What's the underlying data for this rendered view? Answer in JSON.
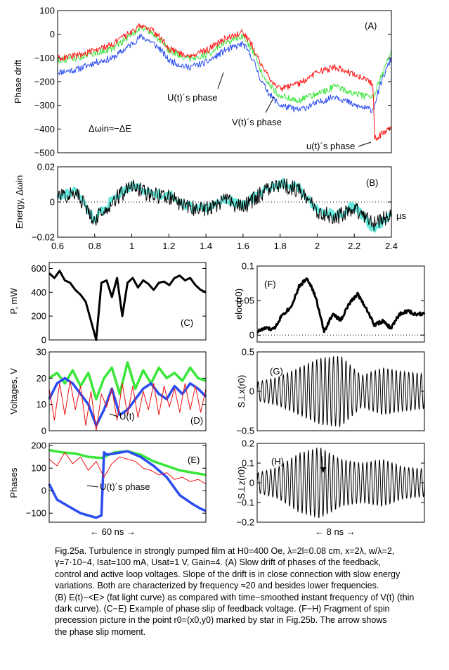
{
  "colors": {
    "red": "#ff1a1a",
    "green": "#39e639",
    "blue": "#2a4cf0",
    "cyan": "#66e8dc",
    "black": "#000000",
    "thin_red": "#ee1111"
  },
  "chart_data": [
    {
      "id": "A",
      "type": "line",
      "panel_label": "(A)",
      "ylabel": "Phase drift",
      "xlim": [
        0.6,
        2.4
      ],
      "ylim": [
        -500,
        100
      ],
      "yticks": [
        100,
        0,
        -100,
        -200,
        -300,
        -400,
        -500
      ],
      "formula": "Δωin≈−ΔE",
      "annotations": [
        "U(t)´s phase",
        "V(t)´s phase",
        "u(t)´s phase"
      ],
      "series": [
        {
          "name": "U(t)´s phase",
          "color": "blue",
          "x": [
            0.6,
            0.7,
            0.8,
            0.9,
            1.0,
            1.05,
            1.1,
            1.15,
            1.2,
            1.3,
            1.4,
            1.5,
            1.6,
            1.65,
            1.7,
            1.75,
            1.8,
            1.85,
            1.9,
            2.0,
            2.1,
            2.2,
            2.3,
            2.35,
            2.4
          ],
          "y": [
            -160,
            -150,
            -120,
            -100,
            -40,
            -10,
            -30,
            -60,
            -110,
            -140,
            -120,
            -70,
            -40,
            -100,
            -200,
            -260,
            -300,
            -310,
            -320,
            -290,
            -260,
            -300,
            -320,
            -190,
            -100
          ]
        },
        {
          "name": "V(t)´s phase",
          "color": "green",
          "x": [
            0.6,
            0.7,
            0.8,
            0.9,
            1.0,
            1.05,
            1.1,
            1.15,
            1.2,
            1.3,
            1.4,
            1.5,
            1.6,
            1.65,
            1.7,
            1.75,
            1.8,
            1.85,
            1.9,
            2.0,
            2.1,
            2.2,
            2.3,
            2.35,
            2.4
          ],
          "y": [
            -110,
            -100,
            -80,
            -60,
            0,
            30,
            10,
            -20,
            -70,
            -100,
            -90,
            -40,
            -10,
            -70,
            -160,
            -220,
            -260,
            -270,
            -280,
            -250,
            -220,
            -250,
            -270,
            -170,
            -70
          ]
        },
        {
          "name": "u(t)´s phase",
          "color": "red",
          "x": [
            0.6,
            0.7,
            0.8,
            0.9,
            1.0,
            1.05,
            1.1,
            1.15,
            1.2,
            1.3,
            1.4,
            1.5,
            1.6,
            1.65,
            1.7,
            1.75,
            1.8,
            1.85,
            1.9,
            2.0,
            2.1,
            2.2,
            2.3,
            2.31,
            2.35,
            2.4
          ],
          "y": [
            -100,
            -90,
            -70,
            -40,
            10,
            40,
            20,
            -10,
            -60,
            -90,
            -70,
            -20,
            10,
            -50,
            -130,
            -190,
            -230,
            -220,
            -210,
            -160,
            -140,
            -170,
            -210,
            -440,
            -420,
            -400
          ]
        }
      ]
    },
    {
      "id": "B",
      "type": "line",
      "panel_label": "(B)",
      "ylabel": "Energy, Δωin",
      "xlabel": "µs",
      "xlim": [
        0.6,
        2.4
      ],
      "ylim": [
        -0.02,
        0.02
      ],
      "xticks": [
        0.6,
        0.8,
        1,
        1.2,
        1.4,
        1.6,
        1.8,
        2,
        2.2,
        2.4
      ],
      "yticks": [
        0.02,
        0,
        -0.02
      ],
      "series": [
        {
          "name": "E(t)−<E>",
          "color": "cyan",
          "x": [
            0.6,
            0.7,
            0.8,
            0.9,
            1.0,
            1.1,
            1.2,
            1.3,
            1.4,
            1.5,
            1.6,
            1.7,
            1.8,
            1.9,
            2.0,
            2.1,
            2.2,
            2.3,
            2.4
          ],
          "y": [
            0.004,
            0.006,
            -0.01,
            0.002,
            0.01,
            0.005,
            0.004,
            -0.002,
            -0.004,
            0.002,
            -0.002,
            0.006,
            0.011,
            0.008,
            -0.004,
            -0.008,
            -0.002,
            -0.015,
            -0.008
          ]
        },
        {
          "name": "frequency of V(t)",
          "color": "black",
          "x": [
            0.6,
            0.7,
            0.8,
            0.9,
            1.0,
            1.1,
            1.2,
            1.3,
            1.4,
            1.5,
            1.6,
            1.7,
            1.8,
            1.9,
            2.0,
            2.1,
            2.2,
            2.3,
            2.4
          ],
          "y": [
            0.003,
            0.005,
            -0.01,
            0.001,
            0.009,
            0.004,
            0.003,
            -0.003,
            -0.004,
            0.001,
            -0.003,
            0.005,
            0.01,
            0.007,
            -0.005,
            -0.009,
            -0.003,
            -0.013,
            -0.007
          ]
        }
      ]
    },
    {
      "id": "C",
      "type": "line",
      "panel_label": "(C)",
      "ylabel": "P, mW",
      "ylim": [
        0,
        650
      ],
      "yticks": [
        600,
        400,
        200,
        0
      ],
      "xlim": [
        0,
        60
      ],
      "series": [
        {
          "name": "P",
          "color": "black",
          "x": [
            0,
            2,
            4,
            6,
            8,
            10,
            12,
            14,
            16,
            18,
            20,
            22,
            24,
            26,
            28,
            30,
            32,
            34,
            36,
            38,
            40,
            42,
            44,
            46,
            48,
            50,
            52,
            54,
            56,
            58,
            60
          ],
          "y": [
            560,
            520,
            580,
            500,
            480,
            420,
            380,
            320,
            160,
            0,
            480,
            500,
            360,
            520,
            200,
            480,
            520,
            440,
            500,
            470,
            420,
            480,
            490,
            460,
            520,
            540,
            500,
            520,
            460,
            420,
            400
          ]
        }
      ]
    },
    {
      "id": "D",
      "type": "line",
      "panel_label": "(D)",
      "ylabel": "Voltages, V",
      "ylim": [
        0,
        30
      ],
      "yticks": [
        30,
        20,
        10,
        0
      ],
      "xlim": [
        0,
        60
      ],
      "annotations": [
        "U(t)"
      ],
      "series": [
        {
          "name": "green",
          "color": "green",
          "x": [
            0,
            3,
            6,
            9,
            12,
            15,
            18,
            21,
            24,
            27,
            30,
            33,
            36,
            39,
            42,
            45,
            48,
            51,
            54,
            57,
            60
          ],
          "y": [
            20,
            22,
            18,
            23,
            17,
            22,
            12,
            20,
            24,
            14,
            26,
            16,
            23,
            18,
            24,
            20,
            22,
            19,
            24,
            20,
            19
          ]
        },
        {
          "name": "U(t)",
          "color": "blue",
          "x": [
            0,
            3,
            6,
            9,
            12,
            15,
            18,
            21,
            24,
            27,
            30,
            33,
            36,
            39,
            42,
            45,
            48,
            51,
            54,
            57,
            60
          ],
          "y": [
            12,
            18,
            20,
            18,
            14,
            10,
            2,
            8,
            16,
            6,
            8,
            12,
            16,
            18,
            14,
            12,
            17,
            14,
            18,
            16,
            13
          ]
        },
        {
          "name": "thin",
          "color": "thin_red",
          "x": [
            0,
            2,
            4,
            6,
            8,
            10,
            12,
            14,
            16,
            18,
            20,
            22,
            24,
            26,
            28,
            30,
            32,
            34,
            36,
            38,
            40,
            42,
            44,
            46,
            48,
            50,
            52,
            54,
            56,
            58,
            60
          ],
          "y": [
            16,
            4,
            18,
            6,
            19,
            8,
            17,
            2,
            15,
            0,
            14,
            9,
            16,
            4,
            18,
            6,
            17,
            5,
            15,
            8,
            18,
            6,
            17,
            9,
            16,
            7,
            18,
            8,
            17,
            7,
            16
          ]
        }
      ]
    },
    {
      "id": "E",
      "type": "line",
      "panel_label": "(E)",
      "ylabel": "Phases",
      "ylim": [
        -140,
        210
      ],
      "yticks": [
        200,
        100,
        0,
        -100
      ],
      "xlim": [
        0,
        60
      ],
      "annotations": [
        "U(t)´s phase"
      ],
      "series": [
        {
          "name": "green",
          "color": "green",
          "x": [
            0,
            5,
            10,
            15,
            20,
            25,
            30,
            35,
            40,
            45,
            50,
            55,
            60
          ],
          "y": [
            180,
            170,
            165,
            150,
            145,
            170,
            175,
            160,
            130,
            110,
            90,
            80,
            70
          ]
        },
        {
          "name": "U(t)´s phase",
          "color": "blue",
          "x": [
            0,
            3,
            6,
            9,
            12,
            15,
            18,
            20,
            21,
            22,
            25,
            30,
            35,
            40,
            45,
            50,
            55,
            58,
            60
          ],
          "y": [
            30,
            -40,
            -60,
            -80,
            -100,
            -110,
            -120,
            -110,
            170,
            160,
            165,
            175,
            150,
            110,
            60,
            -20,
            -60,
            -80,
            -90
          ]
        },
        {
          "name": "thin",
          "color": "thin_red",
          "x": [
            0,
            3,
            6,
            9,
            12,
            15,
            18,
            21,
            24,
            27,
            30,
            33,
            36,
            39,
            42,
            45,
            48,
            51,
            54,
            57,
            60
          ],
          "y": [
            140,
            110,
            170,
            120,
            150,
            90,
            130,
            60,
            120,
            150,
            140,
            130,
            100,
            90,
            70,
            80,
            50,
            60,
            40,
            50,
            30
          ]
        }
      ]
    },
    {
      "id": "F",
      "type": "line",
      "panel_label": "(F)",
      "ylabel": "eloc(r0)",
      "ylim": [
        -0.01,
        0.1
      ],
      "yticks": [
        0.1,
        0.05,
        0
      ],
      "xlim": [
        0,
        8
      ],
      "series": [
        {
          "name": "eloc",
          "color": "black",
          "x": [
            0,
            0.4,
            0.8,
            1.2,
            1.6,
            2.0,
            2.4,
            2.8,
            3.2,
            3.6,
            4.0,
            4.4,
            4.8,
            5.2,
            5.6,
            6.0,
            6.4,
            6.8,
            7.2,
            7.6,
            8.0
          ],
          "y": [
            0.005,
            0.01,
            0.008,
            0.03,
            0.04,
            0.07,
            0.083,
            0.055,
            0.005,
            0.03,
            0.022,
            0.045,
            0.06,
            0.04,
            0.015,
            0.02,
            0.01,
            0.03,
            0.035,
            0.03,
            0.032
          ]
        }
      ]
    },
    {
      "id": "G",
      "type": "line",
      "panel_label": "(G)",
      "ylabel": "S⊥x(r0)",
      "ylim": [
        -0.5,
        0.5
      ],
      "yticks": [
        0.5,
        0,
        -0.5
      ],
      "xlim": [
        0,
        8
      ],
      "oscillation": {
        "cycles": 40,
        "envelope_x": [
          0,
          1,
          2,
          3,
          4,
          5,
          6,
          7,
          8
        ],
        "envelope_amp": [
          0.12,
          0.18,
          0.3,
          0.42,
          0.45,
          0.2,
          0.3,
          0.25,
          0.22
        ]
      }
    },
    {
      "id": "H",
      "type": "line",
      "panel_label": "(H)",
      "ylabel": "S⊥z(r0)",
      "ylim": [
        -0.2,
        0.2
      ],
      "yticks": [
        0.2,
        0.1,
        0,
        -0.1,
        -0.2
      ],
      "xlim": [
        0,
        8
      ],
      "oscillation": {
        "cycles": 40,
        "envelope_x": [
          0,
          1,
          2,
          3,
          4,
          5,
          6,
          7,
          8
        ],
        "envelope_amp": [
          0.05,
          0.08,
          0.15,
          0.18,
          0.12,
          0.1,
          0.12,
          0.08,
          0.07
        ]
      }
    }
  ],
  "time_labels": {
    "left": "←  60 ns  →",
    "right": "←  8 ns  →"
  },
  "caption": [
    "Fig.25a. Turbulence in strongly pumped film at H0=400 Oe, λ=2l=0.08 cm, x=2λ, w/λ=2,",
    "γ=7·10−4, Isat=100 mA, Usat=1 V, Gain=4. (A) Slow drift of phases of the feedback,",
    "control and active loop voltages. Slope of the drift is in close connection with slow energy",
    "variations. Both are characterized by frequency ≈20 and besides lower frequencies.",
    "(B) E(t)−<E> (fat light curve) as compared with time−smoothed instant frequency of V(t) (thin",
    "dark curve). (C−E) Example of phase slip of feedback voltage. (F−H) Fragment of spin",
    "precession picture in the point r0=(x0,y0) marked by star in Fig.25b. The arrow shows",
    "the phase slip moment."
  ]
}
